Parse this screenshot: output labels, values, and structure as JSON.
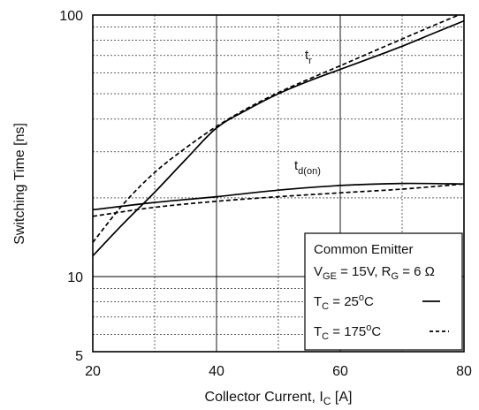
{
  "chart_data": {
    "type": "line",
    "title": "",
    "xlabel": {
      "main": "Collector Current, I",
      "sub": "C",
      "unit": " [A]"
    },
    "ylabel": "Switching Time [ns]",
    "x_scale": "linear",
    "y_scale": "log",
    "xlim": [
      20,
      80
    ],
    "ylim": [
      5,
      100
    ],
    "x_ticks": [
      20,
      40,
      60,
      80
    ],
    "y_ticks": [
      5,
      10,
      100
    ],
    "grid": true,
    "legend_position": "bottom-right",
    "legend": {
      "line1": "Common Emitter",
      "line2": {
        "a": "V",
        "a_sub": "GE",
        "b": " = 15V, R",
        "b_sub": "G",
        "c": " = 6 Ω"
      },
      "line3": {
        "a": "T",
        "a_sub": "C",
        "b": " = 25",
        "b_sup": "o",
        "c": "C"
      },
      "line4": {
        "a": "T",
        "a_sub": "C",
        "b": " = 175",
        "b_sup": "o",
        "c": "C"
      }
    },
    "annotations": {
      "tr": {
        "main": "t",
        "sub": "r"
      },
      "tdon": {
        "main": "t",
        "sub": "d(on)"
      }
    },
    "series": [
      {
        "id": "tr-25",
        "style": "solid",
        "x": [
          20,
          25,
          30,
          35,
          40,
          45,
          50,
          55,
          60,
          65,
          70,
          75,
          80
        ],
        "y": [
          12,
          16,
          21,
          28,
          37,
          43.5,
          50,
          56,
          62,
          68.5,
          76,
          85,
          95
        ]
      },
      {
        "id": "tr-175",
        "style": "dashed",
        "x": [
          20,
          25,
          30,
          35,
          40,
          45,
          50,
          55,
          60,
          65,
          70,
          75,
          80
        ],
        "y": [
          13.5,
          19,
          25,
          31,
          37.5,
          44,
          50.5,
          57,
          64,
          72,
          81,
          91,
          102
        ]
      },
      {
        "id": "tdon-25",
        "style": "solid",
        "x": [
          20,
          30,
          40,
          50,
          60,
          70,
          80
        ],
        "y": [
          18,
          19.2,
          20.2,
          21.4,
          22.3,
          22.7,
          22.6
        ]
      },
      {
        "id": "tdon-175",
        "style": "dashed",
        "x": [
          20,
          30,
          40,
          50,
          60,
          70,
          80
        ],
        "y": [
          17,
          18.4,
          19.4,
          20.2,
          20.9,
          21.6,
          22.6
        ]
      }
    ]
  }
}
